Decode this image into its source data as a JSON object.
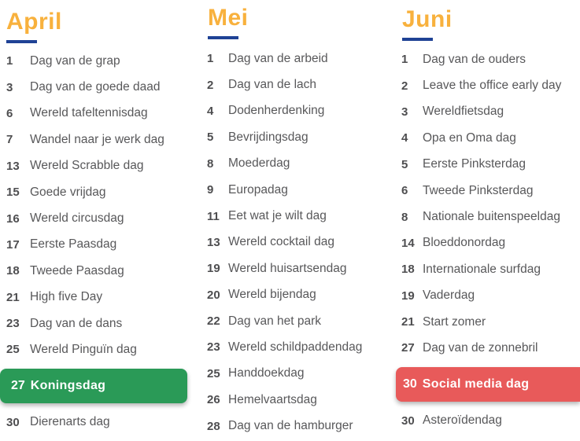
{
  "theme": {
    "month_color": "#F8B13D",
    "underline_color": "#1F4295",
    "number_color": "#4E4E50",
    "label_color": "#58585A",
    "highlight_green": "#2A9A57",
    "highlight_red": "#E85A5A",
    "highlight_text": "#FFFFFF",
    "page_bg": "#FFFFFF"
  },
  "columns": [
    {
      "month": "April",
      "items": [
        {
          "day": "1",
          "label": "Dag van de grap"
        },
        {
          "day": "3",
          "label": "Dag van de goede daad"
        },
        {
          "day": "6",
          "label": "Wereld tafeltennisdag"
        },
        {
          "day": "7",
          "label": "Wandel naar je werk dag"
        },
        {
          "day": "13",
          "label": "Wereld Scrabble dag"
        },
        {
          "day": "15",
          "label": "Goede vrijdag"
        },
        {
          "day": "16",
          "label": "Wereld circusdag"
        },
        {
          "day": "17",
          "label": "Eerste Paasdag"
        },
        {
          "day": "18",
          "label": "Tweede Paasdag"
        },
        {
          "day": "21",
          "label": "High five Day"
        },
        {
          "day": "23",
          "label": "Dag van de dans"
        },
        {
          "day": "25",
          "label": "Wereld Pinguïn dag"
        },
        {
          "day": "27",
          "label": "Koningsdag",
          "highlight": "green"
        },
        {
          "day": "30",
          "label": "Dierenarts dag"
        }
      ]
    },
    {
      "month": "Mei",
      "items": [
        {
          "day": "1",
          "label": "Dag van de arbeid"
        },
        {
          "day": "2",
          "label": "Dag van de lach"
        },
        {
          "day": "4",
          "label": "Dodenherdenking"
        },
        {
          "day": "5",
          "label": "Bevrijdingsdag"
        },
        {
          "day": "8",
          "label": "Moederdag"
        },
        {
          "day": "9",
          "label": "Europadag"
        },
        {
          "day": "11",
          "label": "Eet wat je wilt dag"
        },
        {
          "day": "13",
          "label": "Wereld cocktail dag"
        },
        {
          "day": "19",
          "label": "Wereld huisartsendag"
        },
        {
          "day": "20",
          "label": "Wereld bijendag"
        },
        {
          "day": "22",
          "label": "Dag van het park"
        },
        {
          "day": "23",
          "label": "Wereld schildpaddendag"
        },
        {
          "day": "25",
          "label": "Handdoekdag"
        },
        {
          "day": "26",
          "label": "Hemelvaartsdag"
        },
        {
          "day": "28",
          "label": "Dag van de hamburger"
        }
      ]
    },
    {
      "month": "Juni",
      "items": [
        {
          "day": "1",
          "label": "Dag van de ouders"
        },
        {
          "day": "2",
          "label": "Leave the office early day"
        },
        {
          "day": "3",
          "label": "Wereldfietsdag"
        },
        {
          "day": "4",
          "label": "Opa en Oma dag"
        },
        {
          "day": "5",
          "label": "Eerste Pinksterdag"
        },
        {
          "day": "6",
          "label": "Tweede Pinksterdag"
        },
        {
          "day": "8",
          "label": "Nationale buitenspeeldag"
        },
        {
          "day": "14",
          "label": "Bloeddonordag"
        },
        {
          "day": "18",
          "label": "Internationale surfdag"
        },
        {
          "day": "19",
          "label": "Vaderdag"
        },
        {
          "day": "21",
          "label": "Start zomer"
        },
        {
          "day": "27",
          "label": "Dag van de zonnebril"
        },
        {
          "day": "30",
          "label": "Social media dag",
          "highlight": "red"
        },
        {
          "day": "30",
          "label": "Asteroïdendag"
        }
      ]
    }
  ]
}
